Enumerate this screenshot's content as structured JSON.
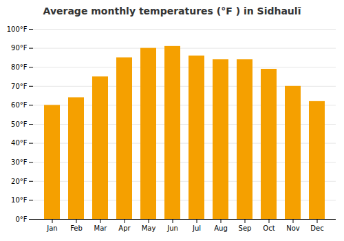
{
  "chart_data": {
    "type": "bar",
    "title": "Average monthly temperatures (°F ) in Sidhaulī",
    "categories": [
      "Jan",
      "Feb",
      "Mar",
      "Apr",
      "May",
      "Jun",
      "Jul",
      "Aug",
      "Sep",
      "Oct",
      "Nov",
      "Dec"
    ],
    "values": [
      60,
      64,
      75,
      85,
      90,
      91,
      86,
      84,
      84,
      79,
      70,
      62
    ],
    "color": "#F5A000",
    "ylim": [
      0,
      100
    ],
    "yticks": [
      {
        "value": 0,
        "label": "0°F"
      },
      {
        "value": 10,
        "label": "10°F"
      },
      {
        "value": 20,
        "label": "20°F"
      },
      {
        "value": 30,
        "label": "30°F"
      },
      {
        "value": 40,
        "label": "40°F"
      },
      {
        "value": 50,
        "label": "50°F"
      },
      {
        "value": 60,
        "label": "60°F"
      },
      {
        "value": 70,
        "label": "70°F"
      },
      {
        "value": 80,
        "label": "80°F"
      },
      {
        "value": 90,
        "label": "90°F"
      },
      {
        "value": 100,
        "label": "100°F"
      }
    ],
    "grid": true
  }
}
